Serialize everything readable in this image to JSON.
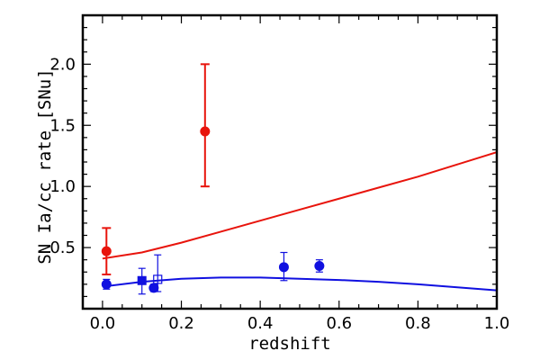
{
  "chart_data": {
    "type": "scatter",
    "title": "",
    "xlabel": "redshift",
    "ylabel": "SN Ia/cc rate [SNu]",
    "xlim": [
      -0.05,
      1.0
    ],
    "ylim": [
      0.0,
      2.4
    ],
    "x_ticks": [
      0.0,
      0.2,
      0.4,
      0.6,
      0.8,
      1.0
    ],
    "x_tick_labels": [
      "0.0",
      "0.2",
      "0.4",
      "0.6",
      "0.8",
      "1.0"
    ],
    "y_ticks": [
      0.5,
      1.0,
      1.5,
      2.0
    ],
    "y_tick_labels": [
      "0.5",
      "1.0",
      "1.5",
      "2.0"
    ],
    "grid": false,
    "legend": "none",
    "colors": {
      "red": "#e8140c",
      "blue": "#1010e0"
    },
    "series": [
      {
        "color": "red",
        "marker": "filled-circle",
        "points": [
          {
            "x": 0.01,
            "y": 0.47,
            "yerr_low": 0.19,
            "yerr_high": 0.19
          },
          {
            "x": 0.26,
            "y": 1.45,
            "yerr_low": 0.45,
            "yerr_high": 0.55
          }
        ]
      },
      {
        "color": "blue",
        "marker": "filled-circle",
        "points": [
          {
            "x": 0.01,
            "y": 0.2,
            "yerr_low": 0.04,
            "yerr_high": 0.04
          },
          {
            "x": 0.13,
            "y": 0.17,
            "yerr_low": 0.03,
            "yerr_high": 0.03
          },
          {
            "x": 0.46,
            "y": 0.34,
            "yerr_low": 0.11,
            "yerr_high": 0.12
          },
          {
            "x": 0.55,
            "y": 0.35,
            "yerr_low": 0.05,
            "yerr_high": 0.05
          }
        ]
      },
      {
        "color": "blue",
        "marker": "filled-square",
        "points": [
          {
            "x": 0.1,
            "y": 0.23,
            "yerr_low": 0.11,
            "yerr_high": 0.1
          }
        ]
      },
      {
        "color": "blue",
        "marker": "open-square",
        "points": [
          {
            "x": 0.14,
            "y": 0.24,
            "yerr_low": 0.1,
            "yerr_high": 0.2
          }
        ]
      }
    ],
    "curves": [
      {
        "color": "red",
        "x": [
          0.0,
          0.1,
          0.2,
          0.3,
          0.4,
          0.5,
          0.6,
          0.7,
          0.8,
          0.9,
          1.0
        ],
        "y": [
          0.41,
          0.46,
          0.54,
          0.63,
          0.72,
          0.81,
          0.9,
          0.99,
          1.08,
          1.18,
          1.28
        ]
      },
      {
        "color": "blue",
        "x": [
          0.0,
          0.1,
          0.2,
          0.3,
          0.4,
          0.5,
          0.6,
          0.7,
          0.8,
          0.9,
          1.0
        ],
        "y": [
          0.18,
          0.22,
          0.245,
          0.255,
          0.255,
          0.245,
          0.235,
          0.22,
          0.2,
          0.175,
          0.15
        ]
      }
    ]
  }
}
